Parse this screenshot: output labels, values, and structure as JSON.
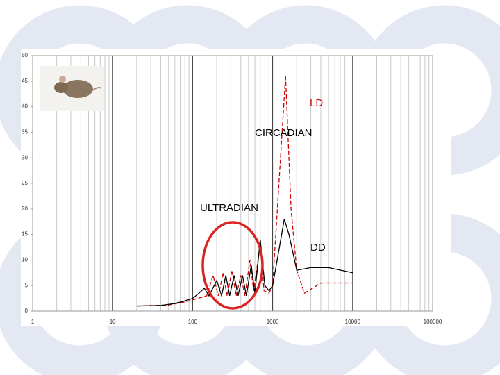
{
  "chart_data": {
    "type": "line",
    "xlim": [
      1,
      100000
    ],
    "ylim": [
      0,
      50
    ],
    "xticks": [
      1,
      10,
      100,
      1000,
      10000,
      100000
    ],
    "yticks": [
      0,
      5,
      10,
      15,
      20,
      25,
      30,
      35,
      40,
      45,
      50
    ],
    "log_x": true,
    "grid": true,
    "minor_grid": true,
    "annotations": [
      "CIRCADIAN",
      "ULTRADIAN"
    ],
    "series": [
      {
        "name": "LD",
        "color": "#cc0000",
        "dashed": true,
        "x": [
          20,
          50,
          80,
          100,
          150,
          180,
          210,
          240,
          270,
          310,
          350,
          400,
          450,
          520,
          580,
          700,
          780,
          900,
          1000,
          1200,
          1450,
          1700,
          2000,
          2500,
          4000,
          10000
        ],
        "values": [
          1,
          1.2,
          1.8,
          2.2,
          3,
          7,
          3,
          7.5,
          3,
          8,
          3,
          7,
          3,
          10,
          4,
          13,
          4,
          3.5,
          5,
          25,
          46,
          20,
          8,
          3.5,
          5.5,
          5.5
        ]
      },
      {
        "name": "DD",
        "color": "#000000",
        "dashed": false,
        "x": [
          20,
          40,
          60,
          80,
          100,
          120,
          140,
          160,
          200,
          230,
          260,
          290,
          330,
          370,
          420,
          470,
          540,
          600,
          700,
          800,
          900,
          1000,
          1200,
          1400,
          1600,
          2000,
          3000,
          5000,
          10000
        ],
        "values": [
          1,
          1.1,
          1.5,
          2,
          2.5,
          3.5,
          4.5,
          3,
          6,
          3,
          7,
          3,
          7,
          3,
          7,
          3,
          9,
          3.5,
          14,
          5,
          4,
          5,
          12,
          18,
          15,
          8,
          8.5,
          8.5,
          7.5
        ]
      }
    ]
  }
}
